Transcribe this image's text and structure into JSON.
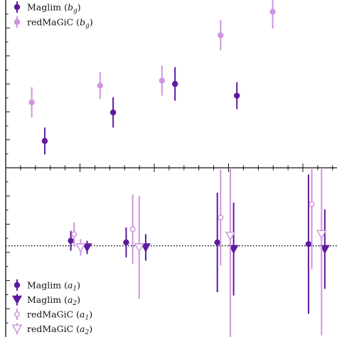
{
  "colors": {
    "maglim": "#5e1a9e",
    "redmagic": "#cf95de",
    "axis": "#111111"
  },
  "chart_data": [
    {
      "type": "scatter",
      "panel": "top",
      "title": "",
      "xlabel": "",
      "ylabel": "",
      "ylim": [
        0.0,
        1.0
      ],
      "xlim": [
        0.0,
        1.0
      ],
      "legend_position": "top-left",
      "series": [
        {
          "name": "Maglim (b_g)",
          "color_key": "maglim",
          "marker": "filled-circle",
          "points": [
            {
              "x": 0.12,
              "y": 0.16,
              "err": 0.08
            },
            {
              "x": 0.33,
              "y": 0.33,
              "err": 0.09
            },
            {
              "x": 0.52,
              "y": 0.5,
              "err": 0.1
            },
            {
              "x": 0.71,
              "y": 0.43,
              "err": 0.08
            }
          ]
        },
        {
          "name": "redMaGiC (b_g)",
          "color_key": "redmagic",
          "marker": "filled-circle",
          "points": [
            {
              "x": 0.08,
              "y": 0.39,
              "err": 0.09
            },
            {
              "x": 0.29,
              "y": 0.49,
              "err": 0.08
            },
            {
              "x": 0.48,
              "y": 0.52,
              "err": 0.09
            },
            {
              "x": 0.66,
              "y": 0.79,
              "err": 0.09
            },
            {
              "x": 0.82,
              "y": 0.93,
              "err": 0.1
            }
          ]
        }
      ]
    },
    {
      "type": "scatter",
      "panel": "bottom",
      "title": "",
      "xlabel": "",
      "ylabel": "",
      "ylim": [
        -0.55,
        0.47
      ],
      "xlim": [
        0.0,
        1.0
      ],
      "reference_line": {
        "y": 0.0,
        "style": "dotted"
      },
      "legend_position": "bottom-left",
      "series": [
        {
          "name": "Maglim (a_1)",
          "color_key": "maglim",
          "marker": "filled-circle",
          "points": [
            {
              "x": 0.2,
              "y": 0.03,
              "err": 0.06
            },
            {
              "x": 0.37,
              "y": 0.02,
              "err": 0.09
            },
            {
              "x": 0.65,
              "y": 0.02,
              "err": 0.3
            },
            {
              "x": 0.93,
              "y": 0.01,
              "err": 0.42
            }
          ]
        },
        {
          "name": "Maglim (a_2)",
          "color_key": "maglim",
          "marker": "filled-triangle-down",
          "points": [
            {
              "x": 0.25,
              "y": -0.01,
              "err": 0.04
            },
            {
              "x": 0.43,
              "y": -0.01,
              "err": 0.08
            },
            {
              "x": 0.7,
              "y": -0.02,
              "err": 0.28
            },
            {
              "x": 0.98,
              "y": -0.02,
              "err": 0.24
            }
          ]
        },
        {
          "name": "redMaGiC (a_1)",
          "color_key": "redmagic",
          "marker": "open-circle",
          "points": [
            {
              "x": 0.21,
              "y": 0.07,
              "err": 0.07
            },
            {
              "x": 0.39,
              "y": 0.1,
              "err": 0.21
            },
            {
              "x": 0.66,
              "y": 0.17,
              "err": 0.29
            },
            {
              "x": 0.94,
              "y": 0.25,
              "err": 0.39
            }
          ]
        },
        {
          "name": "redMaGiC (a_2)",
          "color_key": "redmagic",
          "marker": "open-triangle-down",
          "points": [
            {
              "x": 0.23,
              "y": -0.01,
              "err": 0.05
            },
            {
              "x": 0.41,
              "y": -0.01,
              "err": 0.31
            },
            {
              "x": 0.69,
              "y": 0.06,
              "err": 0.61
            },
            {
              "x": 0.97,
              "y": 0.07,
              "err": 0.61
            }
          ]
        }
      ]
    }
  ],
  "legend": {
    "top": [
      {
        "name": "Maglim",
        "math": "b",
        "sub": "g",
        "series": "Maglim (b_g)"
      },
      {
        "name": "redMaGiC",
        "math": "b",
        "sub": "g",
        "series": "redMaGiC (b_g)"
      }
    ],
    "bottom": [
      {
        "name": "Maglim",
        "math": "a",
        "sub": "1",
        "series": "Maglim (a_1)"
      },
      {
        "name": "Maglim",
        "math": "a",
        "sub": "2",
        "series": "Maglim (a_2)"
      },
      {
        "name": "redMaGiC",
        "math": "a",
        "sub": "1",
        "series": "redMaGiC (a_1)"
      },
      {
        "name": "redMaGiC",
        "math": "a",
        "sub": "2",
        "series": "redMaGiC (a_2)"
      }
    ]
  }
}
